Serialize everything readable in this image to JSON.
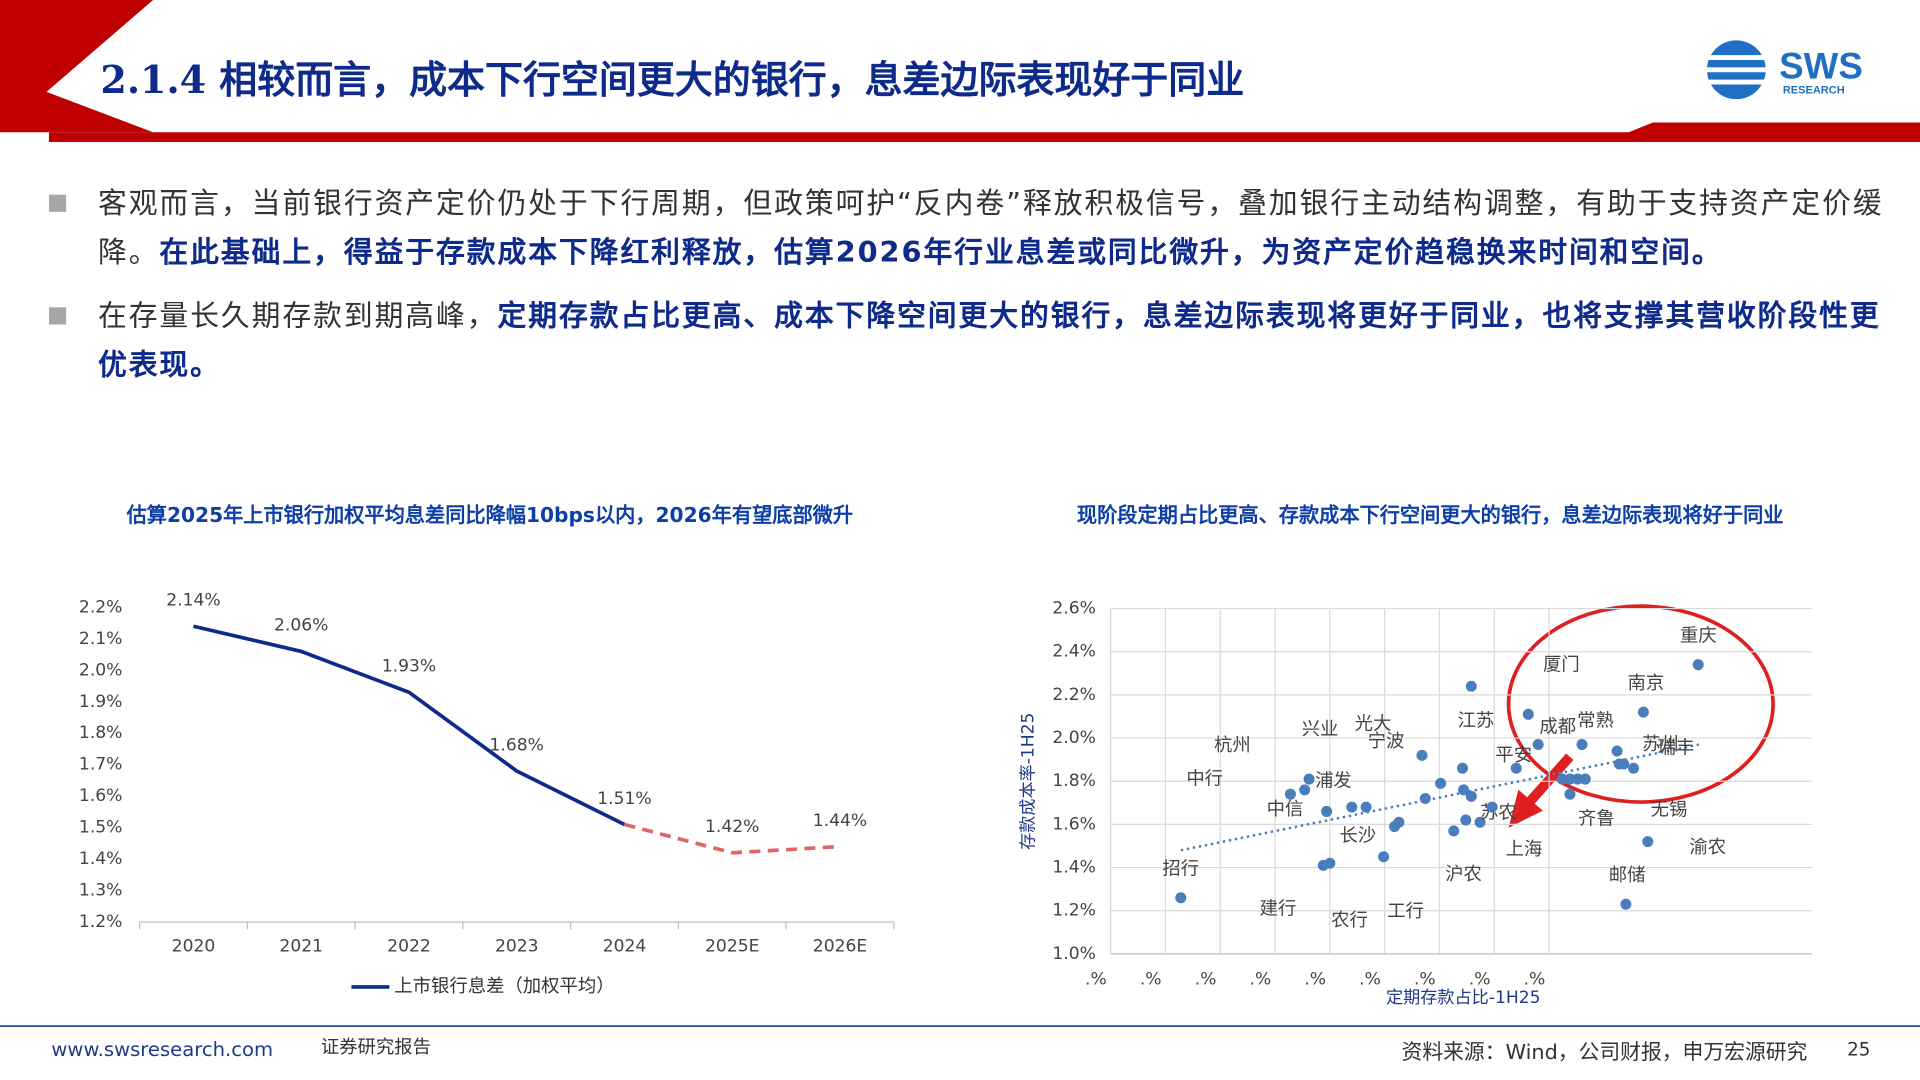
{
  "header": {
    "title": "2.1.4 相较而言，成本下行空间更大的银行，息差边际表现好于同业"
  },
  "logo": {
    "name": "SWS",
    "sub": "RESEARCH"
  },
  "bullets": [
    [
      {
        "text": "客观而言，当前银行资产定价仍处于下行周期，但政策呵护“反内卷”释放积极信号，叠加银行主动结构调整，有助于支持资产定价缓降。",
        "bold": false
      },
      {
        "text": "在此基础上，得益于存款成本下降红利释放，估算2026年行业息差或同比微升，为资产定价趋稳换来时间和空间。",
        "bold": true
      }
    ],
    [
      {
        "text": "在存量长久期存款到期高峰，",
        "bold": false
      },
      {
        "text": "定期存款占比更高、成本下降空间更大的银行，息差边际表现将更好于同业，也将支撑其营收阶段性更优表现。",
        "bold": true
      }
    ]
  ],
  "chart_data": [
    {
      "type": "line",
      "title": "估算2025年上市银行加权平均息差同比降幅10bps以内，2026年有望底部微升",
      "categories": [
        "2020",
        "2021",
        "2022",
        "2023",
        "2024",
        "2025E",
        "2026E"
      ],
      "series": [
        {
          "name": "上市银行息差（加权平均）",
          "color": "#0e2a8a",
          "forecast_color": "#e06666",
          "values": [
            2.14,
            2.06,
            1.93,
            1.68,
            1.51,
            1.42,
            1.44
          ],
          "value_labels": [
            "2.14%",
            "2.06%",
            "1.93%",
            "1.68%",
            "1.51%",
            "1.42%",
            "1.44%"
          ]
        }
      ],
      "ylim": [
        1.2,
        2.2
      ],
      "yticks": [
        {
          "value": 1.2,
          "label": "1.2%"
        },
        {
          "value": 1.3,
          "label": "1.3%"
        },
        {
          "value": 1.4,
          "label": "1.4%"
        },
        {
          "value": 1.5,
          "label": "1.5%"
        },
        {
          "value": 1.6,
          "label": "1.6%"
        },
        {
          "value": 1.7,
          "label": "1.7%"
        },
        {
          "value": 1.8,
          "label": "1.8%"
        },
        {
          "value": 1.9,
          "label": "1.9%"
        },
        {
          "value": 2.0,
          "label": "2.0%"
        },
        {
          "value": 2.1,
          "label": "2.1%"
        },
        {
          "value": 2.2,
          "label": "2.2%"
        }
      ],
      "grid": false,
      "legend": "bottom"
    },
    {
      "type": "scatter",
      "title": "现阶段定期占比更高、存款成本下行空间更大的银行，息差边际表现将好于同业",
      "xlabel": "定期存款占比-1H25",
      "ylabel": "存款成本率-1H25",
      "color": "#4a7ebb",
      "x": [
        26.4,
        39.4,
        40.0,
        44.9,
        36.4,
        37.7,
        38.1,
        39.7,
        42.0,
        43.3,
        45.9,
        46.3,
        48.4,
        48.7,
        50.1,
        51.3,
        52.1,
        52.2,
        52.4,
        52.9,
        52.9,
        53.7,
        54.8,
        57.0,
        58.1,
        59.0,
        61.2,
        61.9,
        62.6,
        61.9,
        63.3,
        63.0,
        66.4,
        66.2,
        66.8,
        67.7,
        68.6,
        69.0,
        67.0,
        73.6
      ],
      "y": [
        1.26,
        1.41,
        1.42,
        1.45,
        1.74,
        1.76,
        1.81,
        1.66,
        1.68,
        1.68,
        1.59,
        1.61,
        1.92,
        1.72,
        1.79,
        1.57,
        1.86,
        1.76,
        1.62,
        2.24,
        1.73,
        1.61,
        1.68,
        1.86,
        2.11,
        1.97,
        1.81,
        1.81,
        1.81,
        1.74,
        1.81,
        1.97,
        1.88,
        1.94,
        1.88,
        1.86,
        2.12,
        1.52,
        1.23,
        2.34
      ],
      "labels": [
        "招行",
        "建行",
        "农行",
        "工行",
        "中行",
        "杭州",
        "兴业",
        "中信",
        "浦发",
        null,
        "长沙",
        null,
        "光大",
        "宁波",
        null,
        "沪农",
        "江苏",
        null,
        null,
        null,
        null,
        "苏农",
        "上海",
        "平安",
        "厦门",
        "成都",
        null,
        null,
        null,
        null,
        "齐鲁",
        "常熟",
        null,
        "瑞丰",
        "无锡",
        "苏州",
        "南京",
        "渝农",
        "邮储",
        "重庆"
      ],
      "trendline": {
        "x": [
          26.4,
          73.7
        ],
        "y": [
          1.48,
          1.97
        ]
      },
      "xlim": [
        20,
        84
      ],
      "xticks": [
        {
          "value": 20,
          "label": ".%"
        },
        {
          "value": 25,
          "label": ".%"
        },
        {
          "value": 30,
          "label": ".%"
        },
        {
          "value": 35,
          "label": ".%"
        },
        {
          "value": 40,
          "label": ".%"
        },
        {
          "value": 45,
          "label": ".%"
        },
        {
          "value": 50,
          "label": ".%"
        },
        {
          "value": 55,
          "label": ".%"
        },
        {
          "value": 60,
          "label": ".%"
        }
      ],
      "ylim": [
        1.0,
        2.6
      ],
      "yticks": [
        {
          "value": 1.0,
          "label": "1.0%"
        },
        {
          "value": 1.2,
          "label": "1.2%"
        },
        {
          "value": 1.4,
          "label": "1.4%"
        },
        {
          "value": 1.6,
          "label": "1.6%"
        },
        {
          "value": 1.8,
          "label": "1.8%"
        },
        {
          "value": 2.0,
          "label": "2.0%"
        },
        {
          "value": 2.2,
          "label": "2.2%"
        },
        {
          "value": 2.4,
          "label": "2.4%"
        },
        {
          "value": 2.6,
          "label": "2.6%"
        }
      ],
      "grid": true
    }
  ],
  "footer": {
    "url": "www.swsresearch.com",
    "label": "证券研究报告",
    "source": "资料来源：Wind，公司财报，申万宏源研究",
    "page": "25"
  }
}
